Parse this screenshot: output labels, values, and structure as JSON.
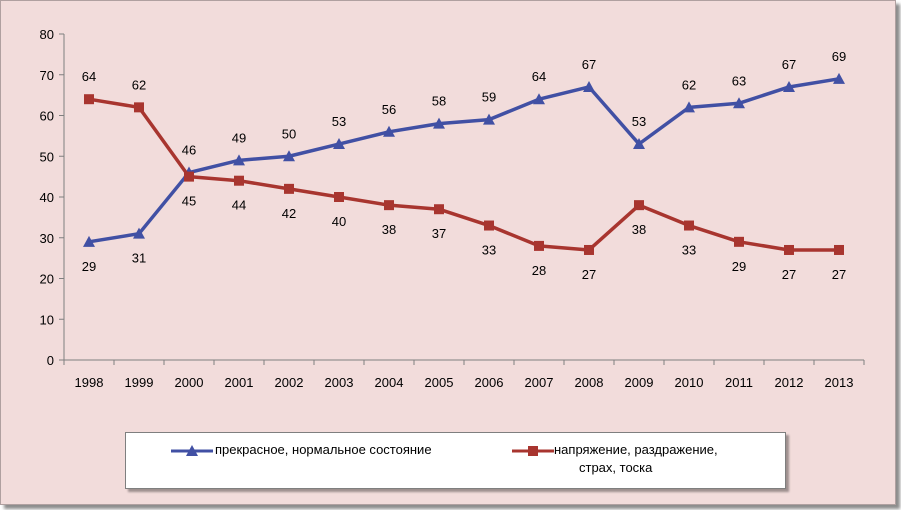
{
  "chart_data": {
    "type": "line",
    "categories": [
      "1998",
      "1999",
      "2000",
      "2001",
      "2002",
      "2003",
      "2004",
      "2005",
      "2006",
      "2007",
      "2008",
      "2009",
      "2010",
      "2011",
      "2012",
      "2013"
    ],
    "series": [
      {
        "name": "прекрасное, нормальное состояние",
        "color": "#4150a4",
        "marker": "triangle",
        "values": [
          29,
          31,
          46,
          49,
          50,
          53,
          56,
          58,
          59,
          64,
          67,
          53,
          62,
          63,
          67,
          69
        ],
        "label_position": "mixed"
      },
      {
        "name": "напряжение, раздражение,\nстрах, тоска",
        "name_lines": [
          "напряжение, раздражение,",
          "страх, тоска"
        ],
        "color": "#a8352f",
        "marker": "square",
        "values": [
          64,
          62,
          45,
          44,
          42,
          40,
          38,
          37,
          33,
          28,
          27,
          38,
          33,
          29,
          27,
          27
        ]
      }
    ],
    "ylim": [
      0,
      80
    ],
    "yticks": [
      0,
      10,
      20,
      30,
      40,
      50,
      60,
      70,
      80
    ],
    "grid": false,
    "legend_placement": "bottom",
    "title": "",
    "xlabel": "",
    "ylabel": ""
  }
}
